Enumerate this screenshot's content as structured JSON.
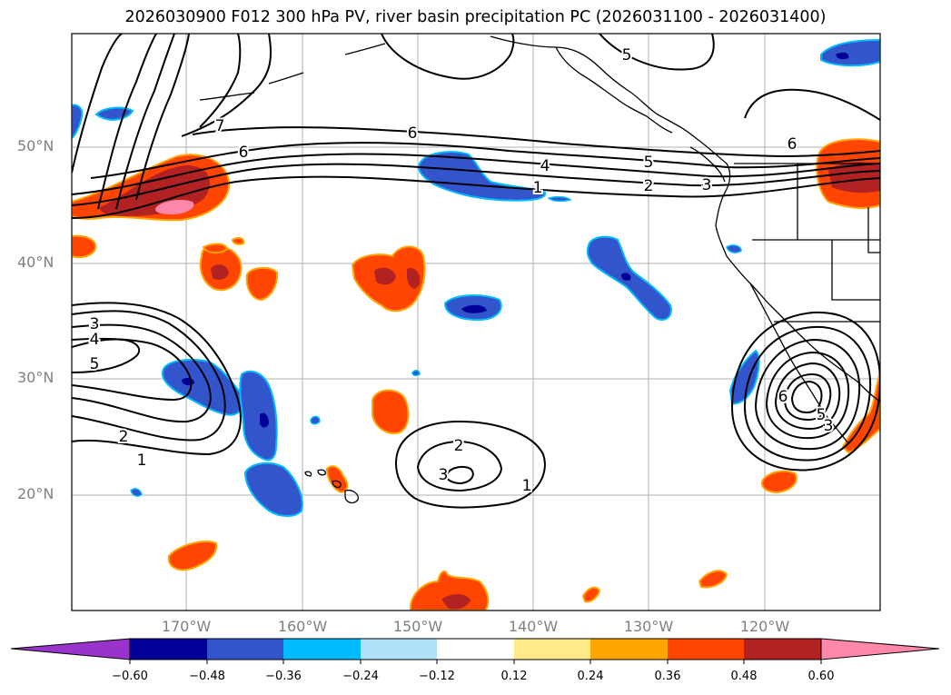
{
  "title": "2026030900 F012 300 hPa PV, river basin precipitation PC (2026031100 - 2026031400)",
  "latitude_labels": [
    "50°N",
    "40°N",
    "30°N",
    "20°N"
  ],
  "longitude_labels": [
    "170°W",
    "160°W",
    "150°W",
    "140°W",
    "130°W",
    "120°W"
  ],
  "contour_labels": {
    "north_jet": [
      "7",
      "6",
      "6",
      "4",
      "1",
      "5",
      "2",
      "3",
      "6",
      "5"
    ],
    "west_trough": [
      "3",
      "4",
      "5",
      "2",
      "1"
    ],
    "central_high": [
      "2",
      "3",
      "1"
    ],
    "baja_low": [
      "6",
      "5",
      "3"
    ]
  },
  "colorbar": {
    "colors": [
      "#9933cc",
      "#000099",
      "#3355cc",
      "#00bbff",
      "#b0e0fa",
      "#ffffff",
      "#ffe98a",
      "#ffa500",
      "#ff4500",
      "#b22222",
      "#ff88aa"
    ],
    "tick_labels": [
      "−0.60",
      "−0.48",
      "−0.36",
      "−0.24",
      "−0.12",
      "0.12",
      "0.24",
      "0.36",
      "0.48",
      "0.60"
    ]
  },
  "map_colors": {
    "frame": "#000000",
    "gridline": "#b0b0b0",
    "coast": "#000000",
    "contour": "#000000"
  }
}
